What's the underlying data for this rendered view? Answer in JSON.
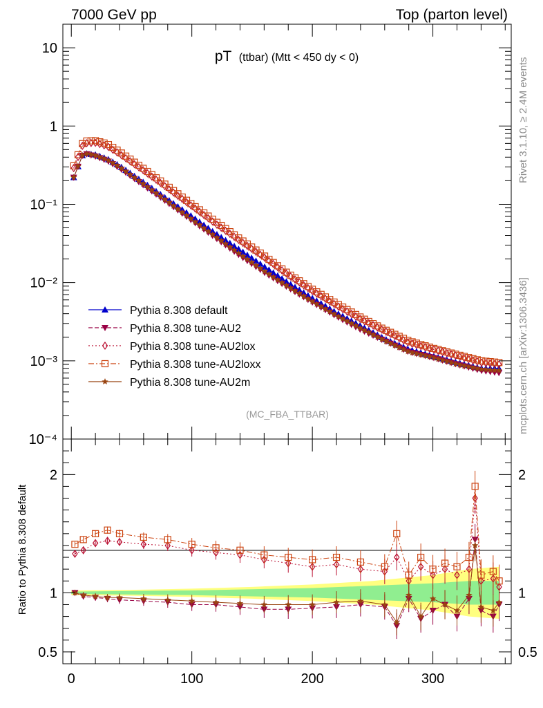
{
  "header": {
    "left": "7000 GeV pp",
    "right": "Top (parton level)"
  },
  "title": {
    "main": "pT",
    "sub": "(ttbar) (Mtt < 450 dy < 0)"
  },
  "side_labels": {
    "rivet": "Rivet 3.1.10, ≥ 2.4M events",
    "mcplots": "mcplots.cern.ch [arXiv:1306.3436]"
  },
  "analysis_tag": "(MC_FBA_TTBAR)",
  "ratio_ylabel": "Ratio to Pythia 8.308 default",
  "colors": {
    "default": "#0000cc",
    "AU2": "#990044",
    "AU2lox": "#bb1133",
    "AU2loxx": "#cc4411",
    "AU2m": "#994411",
    "band_green": "#90ee90",
    "band_yellow": "#ffff80"
  },
  "chart_data": [
    {
      "type": "scatter",
      "panel": "main",
      "yscale": "log",
      "xlim": [
        -7,
        365
      ],
      "ylim": [
        0.0001,
        20
      ],
      "y_ticks": [
        {
          "value": 10,
          "label": "10"
        },
        {
          "value": 1,
          "label": "1"
        },
        {
          "value": 0.1,
          "label": "10⁻¹"
        },
        {
          "value": 0.01,
          "label": "10⁻²"
        },
        {
          "value": 0.001,
          "label": "10⁻³"
        },
        {
          "value": 0.0001,
          "label": "10⁻⁴"
        }
      ],
      "legend_position": "lower-left",
      "series": [
        {
          "name": "Pythia 8.308 default",
          "key": "default",
          "marker": "triangle-up",
          "dash": "solid",
          "x": [
            2,
            10,
            20,
            30,
            40,
            60,
            80,
            100,
            120,
            140,
            160,
            180,
            200,
            220,
            240,
            260,
            280,
            300,
            320,
            340,
            355
          ],
          "y": [
            0.22,
            0.45,
            0.43,
            0.38,
            0.31,
            0.19,
            0.115,
            0.07,
            0.042,
            0.026,
            0.016,
            0.0099,
            0.0063,
            0.0041,
            0.0028,
            0.0019,
            0.0014,
            0.00115,
            0.00095,
            0.0008,
            0.0008
          ]
        },
        {
          "name": "Pythia 8.308 tune-AU2",
          "key": "AU2",
          "marker": "triangle-down",
          "dash": "dashed",
          "x": [
            2,
            10,
            20,
            30,
            40,
            60,
            80,
            100,
            120,
            140,
            160,
            180,
            200,
            220,
            240,
            260,
            280,
            300,
            320,
            340,
            355
          ],
          "y": [
            0.22,
            0.45,
            0.41,
            0.36,
            0.29,
            0.175,
            0.105,
            0.062,
            0.037,
            0.022,
            0.0135,
            0.0086,
            0.0056,
            0.0037,
            0.0025,
            0.0018,
            0.0013,
            0.0011,
            0.0009,
            0.00075,
            0.0007
          ]
        },
        {
          "name": "Pythia 8.308 tune-AU2lox",
          "key": "AU2lox",
          "marker": "diamond-open",
          "dash": "dotted",
          "x": [
            2,
            10,
            20,
            30,
            40,
            60,
            80,
            100,
            120,
            140,
            160,
            180,
            200,
            220,
            240,
            260,
            280,
            300,
            320,
            340,
            355
          ],
          "y": [
            0.29,
            0.6,
            0.61,
            0.55,
            0.44,
            0.27,
            0.16,
            0.095,
            0.056,
            0.034,
            0.021,
            0.0125,
            0.0078,
            0.0051,
            0.0034,
            0.0024,
            0.0017,
            0.0014,
            0.00115,
            0.00095,
            0.0009
          ]
        },
        {
          "name": "Pythia 8.308 tune-AU2loxx",
          "key": "AU2loxx",
          "marker": "square-open",
          "dash": "dashdot",
          "x": [
            2,
            10,
            20,
            30,
            40,
            60,
            80,
            100,
            120,
            140,
            160,
            180,
            200,
            220,
            240,
            260,
            280,
            300,
            320,
            340,
            355
          ],
          "y": [
            0.31,
            0.64,
            0.65,
            0.59,
            0.47,
            0.285,
            0.17,
            0.1,
            0.06,
            0.036,
            0.022,
            0.013,
            0.0082,
            0.0054,
            0.0036,
            0.0025,
            0.0018,
            0.00145,
            0.0012,
            0.001,
            0.00095
          ]
        },
        {
          "name": "Pythia 8.308 tune-AU2m",
          "key": "AU2m",
          "marker": "star",
          "dash": "solid",
          "x": [
            2,
            10,
            20,
            30,
            40,
            60,
            80,
            100,
            120,
            140,
            160,
            180,
            200,
            220,
            240,
            260,
            280,
            300,
            320,
            340,
            355
          ],
          "y": [
            0.22,
            0.45,
            0.42,
            0.37,
            0.3,
            0.18,
            0.108,
            0.064,
            0.038,
            0.023,
            0.014,
            0.0088,
            0.0057,
            0.0038,
            0.0026,
            0.0018,
            0.0013,
            0.0011,
            0.0009,
            0.00078,
            0.00075
          ]
        }
      ]
    },
    {
      "type": "scatter",
      "panel": "ratio",
      "ylabel": "Ratio to Pythia 8.308 default",
      "xlim": [
        -7,
        365
      ],
      "ylim": [
        0.4,
        2.3
      ],
      "y_ticks": [
        {
          "value": 0.5,
          "label": "0.5"
        },
        {
          "value": 1,
          "label": "1"
        },
        {
          "value": 2,
          "label": "2"
        }
      ],
      "x_ticks": [
        {
          "value": 0,
          "label": "0"
        },
        {
          "value": 100,
          "label": "100"
        },
        {
          "value": 200,
          "label": "200"
        },
        {
          "value": 300,
          "label": "300"
        }
      ],
      "band": {
        "x": [
          0,
          50,
          100,
          150,
          200,
          250,
          300,
          330,
          355
        ],
        "green": [
          0.01,
          0.015,
          0.02,
          0.03,
          0.04,
          0.06,
          0.08,
          0.1,
          0.1
        ],
        "yellow": [
          0.02,
          0.025,
          0.035,
          0.05,
          0.07,
          0.1,
          0.15,
          0.2,
          0.22
        ]
      },
      "series": [
        {
          "key": "AU2",
          "marker": "triangle-down",
          "dash": "dashed",
          "x": [
            3,
            10,
            20,
            30,
            40,
            60,
            80,
            100,
            120,
            140,
            160,
            180,
            200,
            220,
            240,
            260,
            270,
            280,
            290,
            300,
            310,
            320,
            330,
            335,
            340,
            350,
            355
          ],
          "y": [
            1.0,
            0.97,
            0.96,
            0.95,
            0.94,
            0.93,
            0.92,
            0.9,
            0.9,
            0.88,
            0.86,
            0.86,
            0.87,
            0.88,
            0.9,
            0.88,
            0.72,
            0.95,
            0.78,
            0.85,
            0.9,
            0.8,
            0.95,
            1.45,
            0.85,
            0.8,
            0.9
          ]
        },
        {
          "key": "AU2lox",
          "marker": "diamond-open",
          "dash": "dotted",
          "x": [
            3,
            10,
            20,
            30,
            40,
            60,
            80,
            100,
            120,
            140,
            160,
            180,
            200,
            220,
            240,
            260,
            270,
            280,
            290,
            300,
            310,
            320,
            330,
            335,
            340,
            350,
            355
          ],
          "y": [
            1.33,
            1.36,
            1.42,
            1.44,
            1.43,
            1.41,
            1.4,
            1.36,
            1.34,
            1.32,
            1.28,
            1.25,
            1.22,
            1.24,
            1.2,
            1.18,
            1.3,
            1.1,
            1.22,
            1.15,
            1.2,
            1.15,
            1.2,
            1.8,
            1.1,
            1.12,
            1.05
          ]
        },
        {
          "key": "AU2loxx",
          "marker": "square-open",
          "dash": "dashdot",
          "x": [
            3,
            10,
            20,
            30,
            40,
            60,
            80,
            100,
            120,
            140,
            160,
            180,
            200,
            220,
            240,
            260,
            270,
            280,
            290,
            300,
            310,
            320,
            330,
            335,
            340,
            350,
            355
          ],
          "y": [
            1.41,
            1.45,
            1.5,
            1.53,
            1.5,
            1.47,
            1.45,
            1.41,
            1.38,
            1.36,
            1.32,
            1.3,
            1.28,
            1.3,
            1.26,
            1.22,
            1.5,
            1.15,
            1.3,
            1.2,
            1.25,
            1.22,
            1.3,
            1.9,
            1.15,
            1.18,
            1.1
          ]
        },
        {
          "key": "AU2m",
          "marker": "star",
          "dash": "solid",
          "x": [
            3,
            10,
            20,
            30,
            40,
            60,
            80,
            100,
            120,
            140,
            160,
            180,
            200,
            220,
            240,
            260,
            270,
            280,
            290,
            300,
            310,
            320,
            330,
            335,
            340,
            350,
            355
          ],
          "y": [
            1.0,
            0.98,
            0.97,
            0.96,
            0.96,
            0.95,
            0.94,
            0.93,
            0.92,
            0.91,
            0.9,
            0.9,
            0.9,
            0.92,
            0.93,
            0.9,
            0.75,
            0.98,
            0.8,
            0.95,
            0.9,
            0.85,
            0.98,
            1.4,
            0.88,
            0.85,
            0.92
          ]
        }
      ]
    }
  ]
}
